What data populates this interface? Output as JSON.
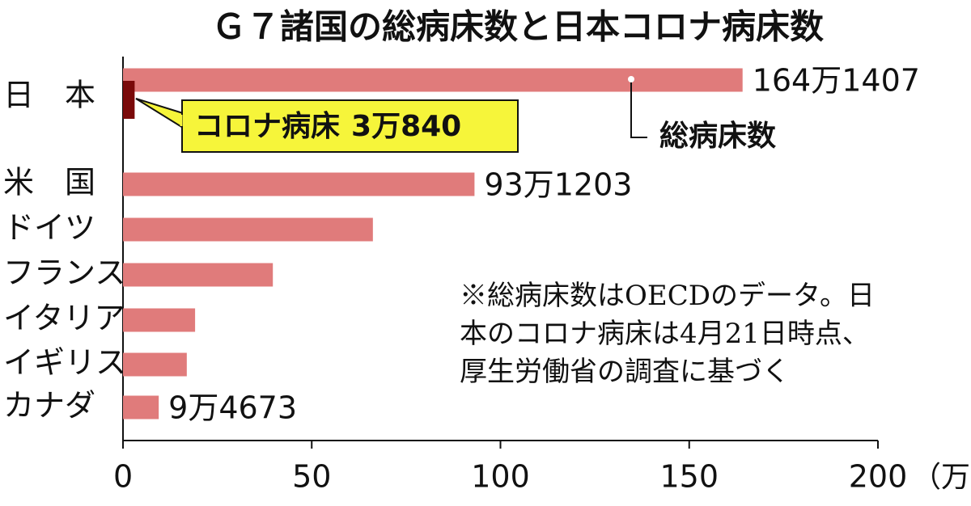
{
  "chart_data": {
    "type": "hbar",
    "title": "Ｇ７諸国の総病床数と日本コロナ病床数",
    "categories": [
      "日　本",
      "米　国",
      "ドイツ",
      "フランス",
      "イタリア",
      "イギリス",
      "カナダ"
    ],
    "series": [
      {
        "name": "総病床数",
        "color": "#e07b7b",
        "values": [
          164.1407,
          93.1203,
          66.2,
          39.7,
          19.1,
          16.9,
          9.4673
        ],
        "value_labels": [
          "164万1407",
          "93万1203",
          null,
          null,
          null,
          null,
          "9万4673"
        ]
      },
      {
        "name": "コロナ病床",
        "color": "#7a0a0a",
        "values": [
          3.084,
          null,
          null,
          null,
          null,
          null,
          null
        ],
        "value_labels": [
          "3万840",
          null,
          null,
          null,
          null,
          null,
          null
        ]
      }
    ],
    "xlim": [
      0,
      200
    ],
    "xticks": [
      0,
      50,
      100,
      150,
      200
    ],
    "x_unit": "（万床）",
    "note": [
      "※総病床数はOECDのデータ。日",
      "本のコロナ病床は4月21日時点、",
      "厚生労働省の調査に基づく"
    ]
  }
}
